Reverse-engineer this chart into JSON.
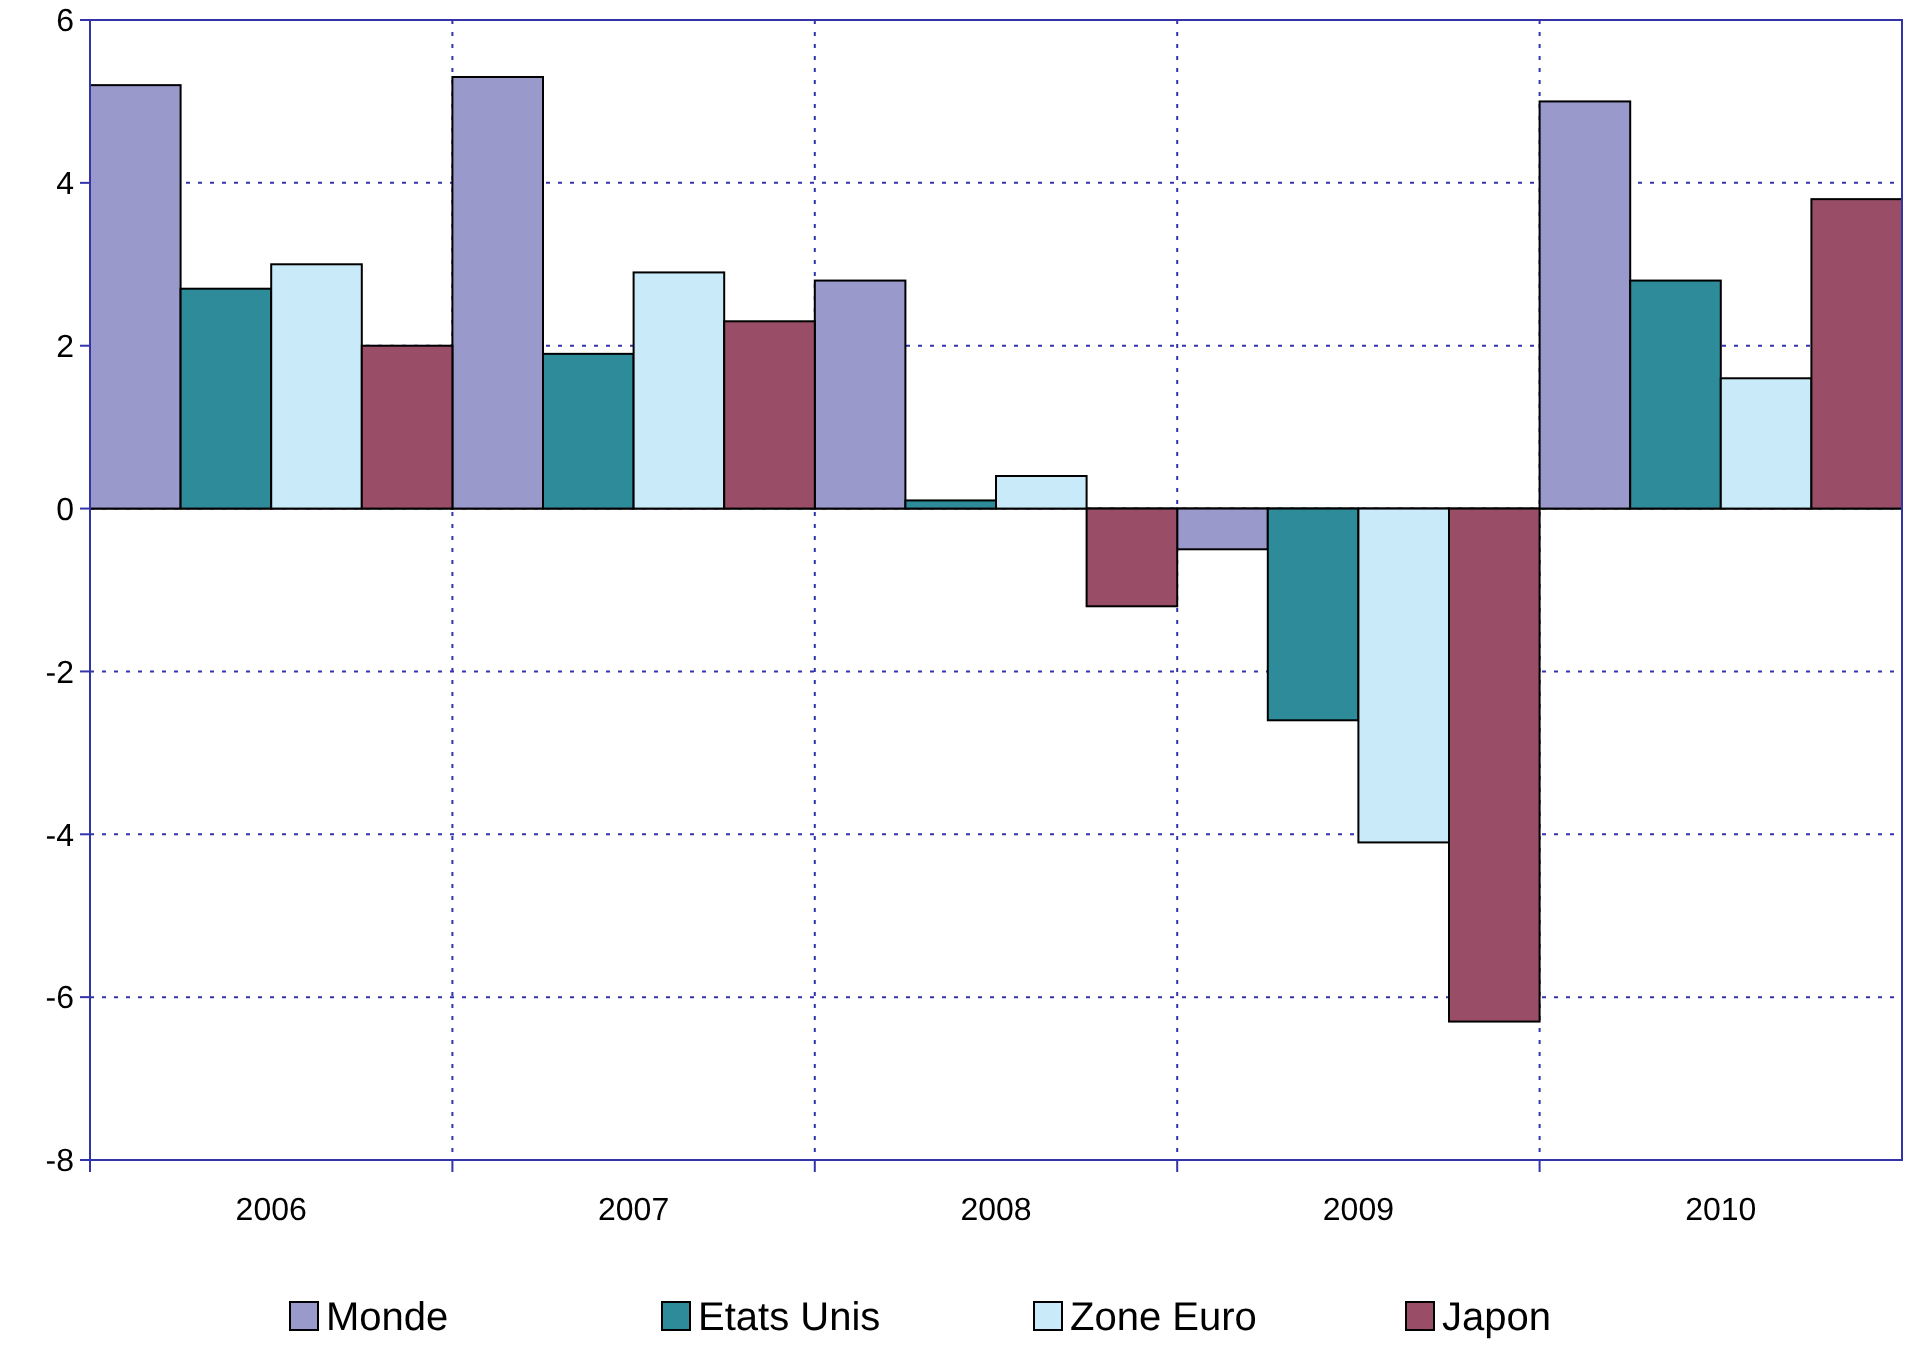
{
  "chart_data": {
    "type": "bar",
    "categories": [
      "2006",
      "2007",
      "2008",
      "2009",
      "2010"
    ],
    "series": [
      {
        "name": "Monde",
        "color": "#9999cc",
        "values": [
          5.2,
          5.3,
          2.8,
          -0.5,
          5.0
        ]
      },
      {
        "name": "Etats Unis",
        "color": "#2e8b9a",
        "values": [
          2.7,
          1.9,
          0.1,
          -2.6,
          2.8
        ]
      },
      {
        "name": "Zone Euro",
        "color": "#c9eaf8",
        "values": [
          3.0,
          2.9,
          0.4,
          -4.1,
          1.6
        ]
      },
      {
        "name": "Japon",
        "color": "#994d66",
        "values": [
          2.0,
          2.3,
          -1.2,
          -6.3,
          3.8
        ]
      }
    ],
    "ylim": [
      -8,
      6
    ],
    "yticks": [
      -8,
      -6,
      -4,
      -2,
      0,
      2,
      4,
      6
    ],
    "grid": true,
    "legend": "bottom"
  }
}
